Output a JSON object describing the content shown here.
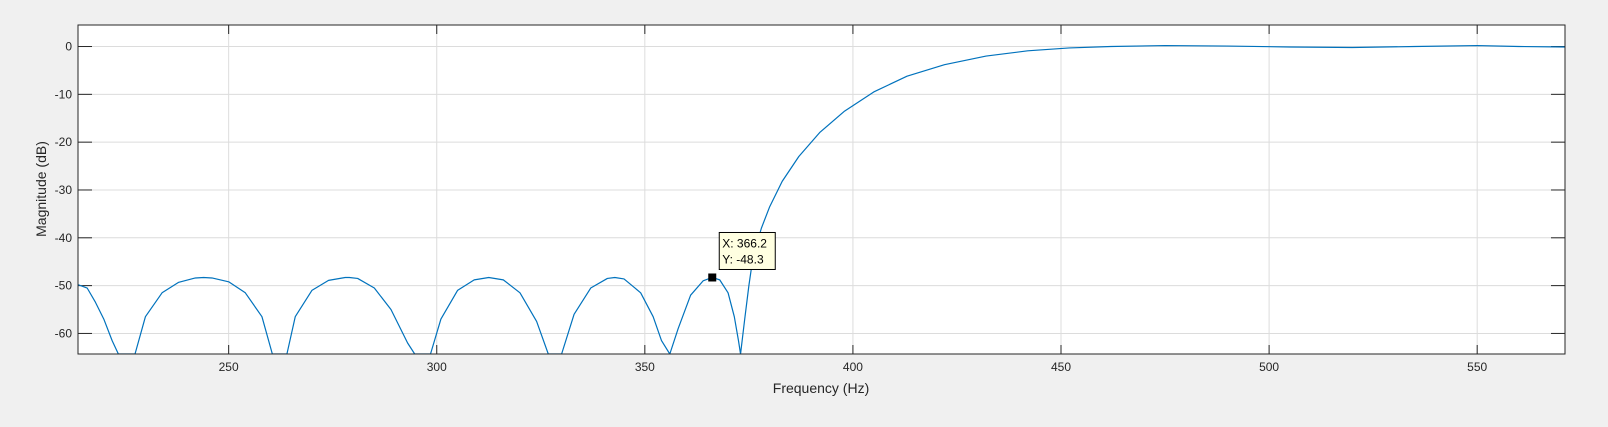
{
  "figure": {
    "background": "#f0f0f0",
    "axes_background": "#ffffff",
    "grid_color": "#dcdcdc",
    "line_color": "#0072bd"
  },
  "chart_data": {
    "type": "line",
    "title": "",
    "xlabel": "Frequency (Hz)",
    "ylabel": "Magnitude (dB)",
    "xlim": [
      213.8,
      571.1
    ],
    "ylim": [
      -64.3,
      4.5
    ],
    "grid": true,
    "xticks": [
      250,
      300,
      350,
      400,
      450,
      500,
      550
    ],
    "yticks": [
      0,
      -10,
      -20,
      -30,
      -40,
      -50,
      -60
    ],
    "series": [
      {
        "x": [
          213.8,
          216,
          218,
          220,
          222,
          223.5,
          227.5,
          230,
          234,
          238,
          242,
          244,
          246,
          250,
          254,
          258,
          260.5,
          264,
          266,
          270,
          274,
          278,
          279,
          281,
          285,
          289,
          293,
          294.7,
          298.5,
          301,
          305,
          309,
          312.5,
          316,
          320,
          324,
          326.8,
          330,
          333,
          337,
          341,
          342.8,
          345,
          349,
          352,
          354,
          356,
          358,
          361,
          364,
          366.2,
          368,
          370,
          371.5,
          372.5,
          373,
          374,
          375,
          376,
          378,
          380,
          383,
          387,
          392,
          398,
          405,
          413,
          422,
          432,
          442,
          452,
          462,
          475,
          490,
          505,
          520,
          535,
          550,
          560,
          571.1
        ],
        "y": [
          -49.8,
          -50.5,
          -53.5,
          -57,
          -61.5,
          -64.3,
          -64.3,
          -56.5,
          -51.5,
          -49.3,
          -48.4,
          -48.3,
          -48.4,
          -49.2,
          -51.5,
          -56.5,
          -64.3,
          -64.3,
          -56.5,
          -51,
          -48.9,
          -48.3,
          -48.3,
          -48.5,
          -50.5,
          -55,
          -62,
          -64.3,
          -64.3,
          -57,
          -51,
          -48.8,
          -48.3,
          -48.8,
          -51.5,
          -57.5,
          -64.3,
          -64.3,
          -56,
          -50.5,
          -48.5,
          -48.3,
          -48.6,
          -51.5,
          -56.5,
          -61.5,
          -64.3,
          -59,
          -52,
          -49,
          -48.3,
          -48.8,
          -51.5,
          -56.5,
          -61.5,
          -64.3,
          -57,
          -50,
          -44,
          -38,
          -33.5,
          -28.2,
          -23,
          -18,
          -13.5,
          -9.5,
          -6.2,
          -3.8,
          -2.0,
          -0.9,
          -0.3,
          0,
          0.2,
          0.1,
          -0.1,
          -0.2,
          0,
          0.2,
          0,
          -0.1
        ]
      }
    ],
    "annotations": [
      {
        "x": 366.2,
        "y": -48.3,
        "line1": "X: 366.2",
        "line2": "Y: -48.3"
      }
    ]
  }
}
